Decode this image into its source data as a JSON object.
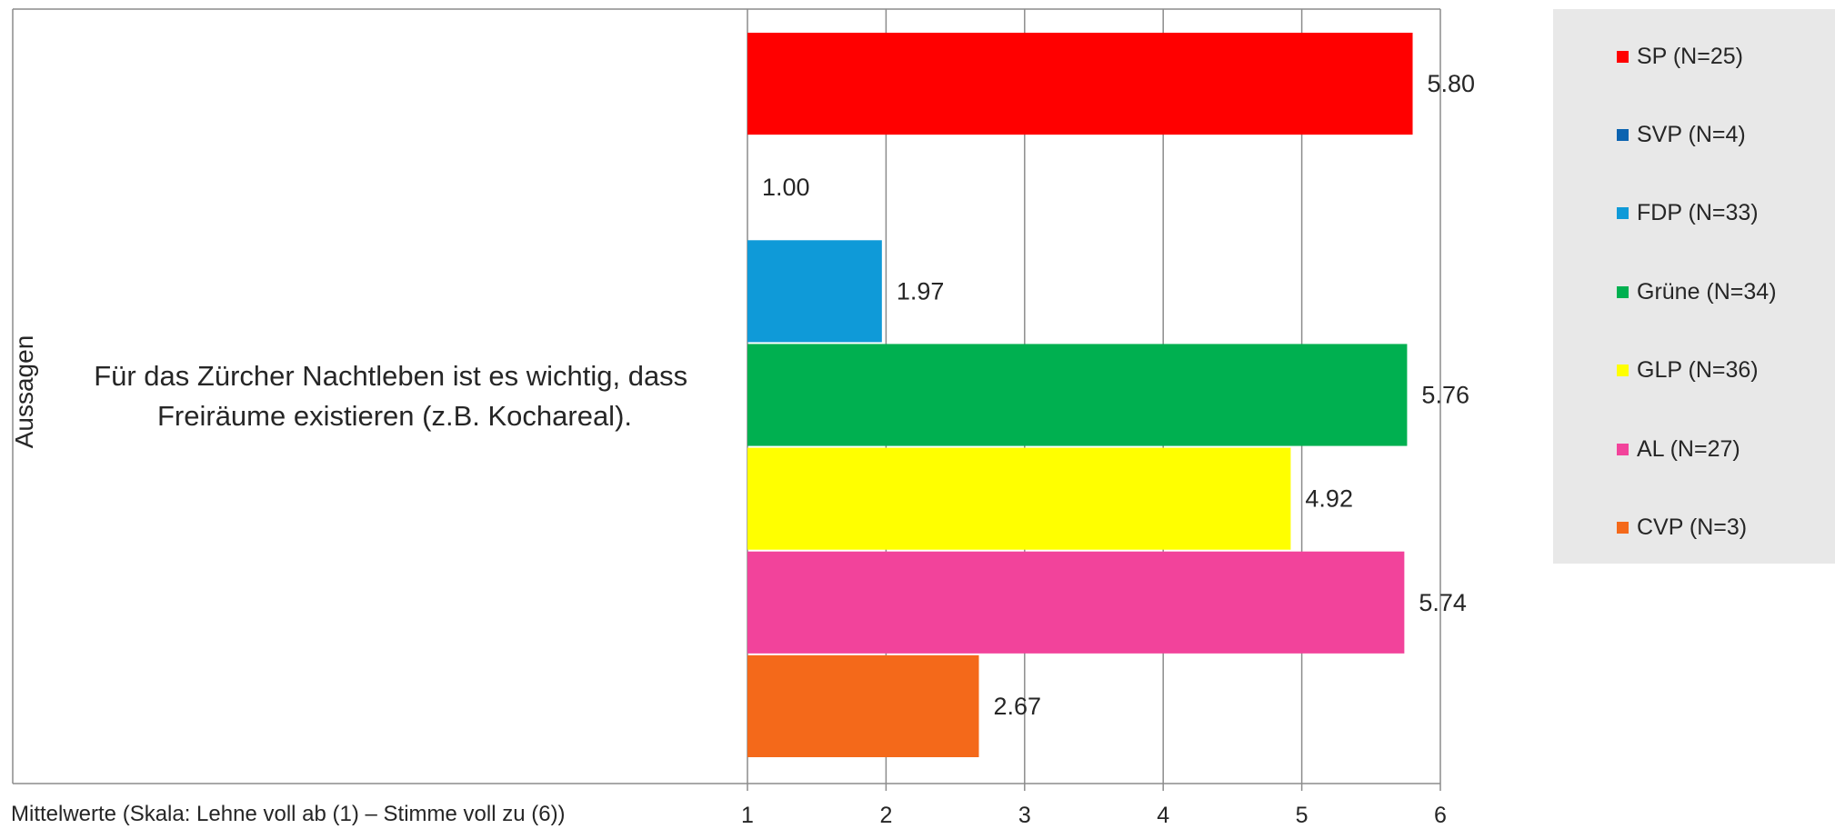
{
  "chart_data": {
    "type": "bar",
    "orientation": "horizontal",
    "categories": [
      "Für das Zürcher Nachtleben ist es wichtig, dass Freiräume existieren (z.B. Kochareal)."
    ],
    "category_lines": [
      "Für das Zürcher Nachtleben ist es wichtig, dass",
      "Freiräume existieren (z.B. Kochareal)."
    ],
    "series": [
      {
        "name": "SP (N=25)",
        "value": 5.8,
        "label": "5.80",
        "color": "#ff0000"
      },
      {
        "name": "SVP (N=4)",
        "value": 1.0,
        "label": "1.00",
        "color": "#0b63b0"
      },
      {
        "name": "FDP (N=33)",
        "value": 1.97,
        "label": "1.97",
        "color": "#0f9ad8"
      },
      {
        "name": "Grüne (N=34)",
        "value": 5.76,
        "label": "5.76",
        "color": "#00b050"
      },
      {
        "name": "GLP (N=36)",
        "value": 4.92,
        "label": "4.92",
        "color": "#ffff00"
      },
      {
        "name": "AL (N=27)",
        "value": 5.74,
        "label": "5.74",
        "color": "#f2439b"
      },
      {
        "name": "CVP (N=3)",
        "value": 2.67,
        "label": "2.67",
        "color": "#f4691a"
      }
    ],
    "xlim": [
      1,
      6
    ],
    "x_ticks": [
      "1",
      "2",
      "3",
      "4",
      "5",
      "6"
    ],
    "xlabel": "Mittelwerte (Skala: Lehne voll ab (1) – Stimme voll zu (6))",
    "ylabel": "Aussagen",
    "grid": true,
    "legend_position": "right"
  }
}
